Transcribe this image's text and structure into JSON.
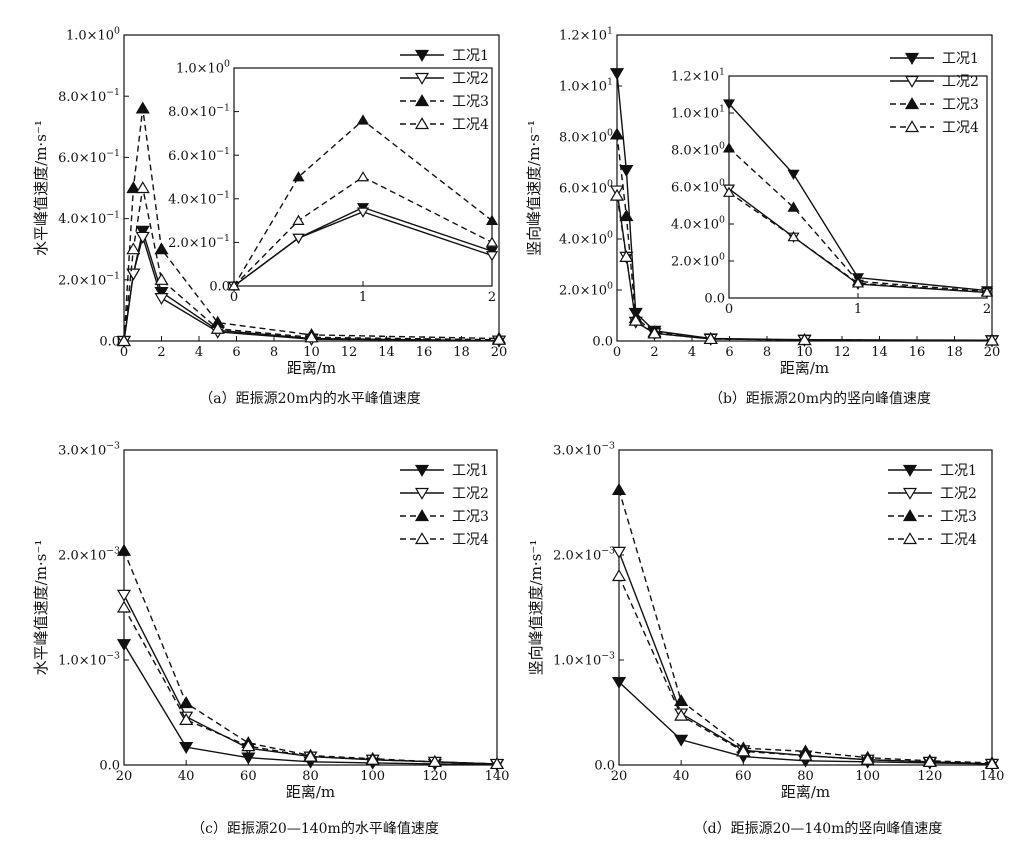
{
  "chart_data": [
    {
      "type": "line",
      "caption": "（a）距振源20m内的水平峰值速度",
      "xlabel": "距离/m",
      "ylabel": "水平峰值速度/m·s⁻¹",
      "xlim": [
        0,
        20
      ],
      "ylim": [
        0,
        1.0
      ],
      "xticks": [
        0,
        2,
        4,
        6,
        8,
        10,
        12,
        14,
        16,
        18,
        20
      ],
      "yticks": [
        {
          "v": 0,
          "m": "0.0",
          "e": ""
        },
        {
          "v": 0.2,
          "m": "2.0×10",
          "e": "−1"
        },
        {
          "v": 0.4,
          "m": "4.0×10",
          "e": "−1"
        },
        {
          "v": 0.6,
          "m": "6.0×10",
          "e": "−1"
        },
        {
          "v": 0.8,
          "m": "8.0×10",
          "e": "−1"
        },
        {
          "v": 1.0,
          "m": "1.0×10",
          "e": "0"
        }
      ],
      "legend_position": "top-right",
      "x": [
        0,
        0.5,
        1,
        2,
        5,
        10,
        20
      ],
      "series": [
        {
          "name": "工况1",
          "values": [
            0,
            0.22,
            0.36,
            0.16,
            0.035,
            0.008,
            0.001
          ]
        },
        {
          "name": "工况2",
          "values": [
            0,
            0.22,
            0.34,
            0.14,
            0.03,
            0.006,
            0.001
          ]
        },
        {
          "name": "工况3",
          "values": [
            0,
            0.5,
            0.76,
            0.3,
            0.06,
            0.02,
            0.008
          ]
        },
        {
          "name": "工况4",
          "values": [
            0,
            0.3,
            0.5,
            0.2,
            0.04,
            0.012,
            0.004
          ]
        }
      ],
      "inset": {
        "xlim": [
          0,
          2
        ],
        "ylim": [
          0,
          1.0
        ],
        "xticks": [
          0,
          1,
          2
        ],
        "yticks": [
          {
            "v": 0,
            "m": "0.0",
            "e": ""
          },
          {
            "v": 0.2,
            "m": "2.0×10",
            "e": "−1"
          },
          {
            "v": 0.4,
            "m": "4.0×10",
            "e": "−1"
          },
          {
            "v": 0.6,
            "m": "6.0×10",
            "e": "−1"
          },
          {
            "v": 0.8,
            "m": "8.0×10",
            "e": "−1"
          },
          {
            "v": 1.0,
            "m": "1.0×10",
            "e": "0"
          }
        ]
      }
    },
    {
      "type": "line",
      "caption": "（b）距振源20m内的竖向峰值速度",
      "xlabel": "距离/m",
      "ylabel": "竖向峰值速度/m·s⁻¹",
      "xlim": [
        0,
        20
      ],
      "ylim": [
        0,
        12
      ],
      "xticks": [
        0,
        2,
        4,
        6,
        8,
        10,
        12,
        14,
        16,
        18,
        20
      ],
      "yticks": [
        {
          "v": 0,
          "m": "0.0",
          "e": ""
        },
        {
          "v": 2,
          "m": "2.0×10",
          "e": "0"
        },
        {
          "v": 4,
          "m": "4.0×10",
          "e": "0"
        },
        {
          "v": 6,
          "m": "6.0×10",
          "e": "0"
        },
        {
          "v": 8,
          "m": "8.0×10",
          "e": "0"
        },
        {
          "v": 10,
          "m": "1.0×10",
          "e": "1"
        },
        {
          "v": 12,
          "m": "1.2×10",
          "e": "1"
        }
      ],
      "legend_position": "top-right",
      "x": [
        0,
        0.5,
        1,
        2,
        5,
        10,
        20
      ],
      "series": [
        {
          "name": "工况1",
          "values": [
            10.5,
            6.7,
            1.1,
            0.4,
            0.1,
            0.05,
            0.03
          ]
        },
        {
          "name": "工况2",
          "values": [
            5.9,
            3.3,
            0.75,
            0.3,
            0.08,
            0.04,
            0.02
          ]
        },
        {
          "name": "工况3",
          "values": [
            8.1,
            4.9,
            0.9,
            0.35,
            0.09,
            0.04,
            0.02
          ]
        },
        {
          "name": "工况4",
          "values": [
            5.7,
            3.3,
            0.8,
            0.3,
            0.08,
            0.04,
            0.02
          ]
        }
      ],
      "inset": {
        "xlim": [
          0,
          2
        ],
        "ylim": [
          0,
          12
        ],
        "xticks": [
          0,
          1,
          2
        ],
        "yticks": [
          {
            "v": 0,
            "m": "0.0",
            "e": ""
          },
          {
            "v": 2,
            "m": "2.0×10",
            "e": "0"
          },
          {
            "v": 4,
            "m": "4.0×10",
            "e": "0"
          },
          {
            "v": 6,
            "m": "6.0×10",
            "e": "0"
          },
          {
            "v": 8,
            "m": "8.0×10",
            "e": "0"
          },
          {
            "v": 10,
            "m": "1.0×10",
            "e": "1"
          },
          {
            "v": 12,
            "m": "1.2×10",
            "e": "1"
          }
        ]
      }
    },
    {
      "type": "line",
      "caption": "（c）距振源20—140m的水平峰值速度",
      "xlabel": "距离/m",
      "ylabel": "水平峰值速度/m·s⁻¹",
      "xlim": [
        20,
        140
      ],
      "ylim": [
        0,
        0.003
      ],
      "xticks": [
        20,
        40,
        60,
        80,
        100,
        120,
        140
      ],
      "yticks": [
        {
          "v": 0,
          "m": "0.0",
          "e": ""
        },
        {
          "v": 0.001,
          "m": "1.0×10",
          "e": "−3"
        },
        {
          "v": 0.002,
          "m": "2.0×10",
          "e": "−3"
        },
        {
          "v": 0.003,
          "m": "3.0×10",
          "e": "−3"
        }
      ],
      "legend_position": "top-right",
      "x": [
        20,
        40,
        60,
        80,
        100,
        120,
        140
      ],
      "series": [
        {
          "name": "工况1",
          "values": [
            0.00115,
            0.00017,
            7e-05,
            3e-05,
            2e-05,
            1e-05,
            5e-06
          ]
        },
        {
          "name": "工况2",
          "values": [
            0.00162,
            0.00046,
            0.00016,
            8e-05,
            5e-05,
            3e-05,
            1e-05
          ]
        },
        {
          "name": "工况3",
          "values": [
            0.00204,
            0.00059,
            0.00021,
            9e-05,
            6e-05,
            3e-05,
            1e-05
          ]
        },
        {
          "name": "工况4",
          "values": [
            0.0015,
            0.00043,
            0.00018,
            8e-05,
            5e-05,
            3e-05,
            1e-05
          ]
        }
      ]
    },
    {
      "type": "line",
      "caption": "（d）距振源20—140m的竖向峰值速度",
      "xlabel": "距离/m",
      "ylabel": "竖向峰值速度/m·s⁻¹",
      "xlim": [
        20,
        140
      ],
      "ylim": [
        0,
        0.003
      ],
      "xticks": [
        20,
        40,
        60,
        80,
        100,
        120,
        140
      ],
      "yticks": [
        {
          "v": 0,
          "m": "0.0",
          "e": ""
        },
        {
          "v": 0.001,
          "m": "1.0×10",
          "e": "−3"
        },
        {
          "v": 0.002,
          "m": "2.0×10",
          "e": "−3"
        },
        {
          "v": 0.003,
          "m": "3.0×10",
          "e": "−3"
        }
      ],
      "legend_position": "top-right",
      "x": [
        20,
        40,
        60,
        80,
        100,
        120,
        140
      ],
      "series": [
        {
          "name": "工况1",
          "values": [
            0.00079,
            0.00024,
            8e-05,
            4e-05,
            3e-05,
            2e-05,
            1e-05
          ]
        },
        {
          "name": "工况2",
          "values": [
            0.00203,
            0.00049,
            0.00014,
            9e-05,
            5e-05,
            3e-05,
            1e-05
          ]
        },
        {
          "name": "工况3",
          "values": [
            0.00262,
            0.00061,
            0.00016,
            0.00013,
            7e-05,
            4e-05,
            2e-05
          ]
        },
        {
          "name": "工况4",
          "values": [
            0.0018,
            0.00047,
            0.00013,
            9e-05,
            5e-05,
            3e-05,
            1e-05
          ]
        }
      ]
    }
  ]
}
